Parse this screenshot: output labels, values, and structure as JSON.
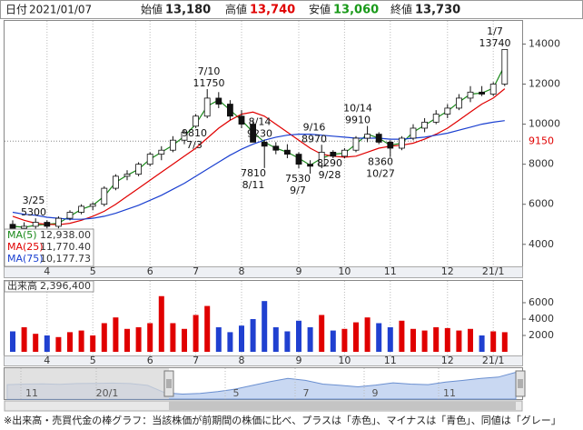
{
  "header": {
    "date_label": "日付",
    "date": "2021/01/07",
    "open_label": "始値",
    "open": "13,180",
    "high_label": "高値",
    "high": "13,740",
    "low_label": "安値",
    "low": "13,060",
    "close_label": "終値",
    "close": "13,730"
  },
  "chart_data": [
    {
      "type": "candlestick",
      "categories": [
        null,
        null,
        null,
        "4",
        null,
        null,
        null,
        "5",
        null,
        null,
        null,
        null,
        "6",
        null,
        null,
        null,
        "7",
        null,
        null,
        null,
        "8",
        null,
        null,
        null,
        null,
        "9",
        null,
        null,
        null,
        "10",
        null,
        null,
        null,
        "11",
        null,
        null,
        null,
        null,
        "12",
        null,
        null,
        null,
        "21/1",
        null
      ],
      "open": [
        5000,
        4800,
        4900,
        5100,
        4900,
        5300,
        5600,
        5900,
        6000,
        6800,
        7400,
        7500,
        8000,
        8500,
        8700,
        9200,
        9900,
        10400,
        11300,
        11000,
        10400,
        10000,
        9100,
        8900,
        8700,
        8500,
        8000,
        7900,
        8600,
        8400,
        8700,
        9300,
        9500,
        9100,
        8800,
        9300,
        9800,
        10100,
        10500,
        10800,
        11300,
        11600,
        11500,
        12000
      ],
      "high": [
        5200,
        5100,
        5300,
        5200,
        5400,
        5700,
        6000,
        6100,
        6900,
        7500,
        7700,
        8100,
        8600,
        8900,
        9400,
        9700,
        10500,
        11750,
        11600,
        11200,
        10700,
        10200,
        9230,
        9100,
        9000,
        8600,
        8200,
        8970,
        8700,
        8800,
        9400,
        9910,
        9600,
        9200,
        9400,
        10000,
        10300,
        10700,
        11000,
        11500,
        11900,
        11900,
        12100,
        13740
      ],
      "low": [
        4600,
        4500,
        4700,
        4800,
        4800,
        5200,
        5500,
        5700,
        5900,
        6700,
        7200,
        7400,
        7900,
        8200,
        8600,
        9000,
        9810,
        10300,
        10800,
        10200,
        9800,
        9200,
        7810,
        8500,
        8300,
        7800,
        7530,
        7800,
        8300,
        8290,
        8600,
        9100,
        9000,
        8360,
        8700,
        9200,
        9600,
        10000,
        10300,
        10700,
        11100,
        11400,
        11400,
        11900
      ],
      "close": [
        4800,
        4900,
        5100,
        4900,
        5300,
        5600,
        5900,
        6000,
        6800,
        7400,
        7500,
        8000,
        8500,
        8700,
        9200,
        9600,
        10400,
        11300,
        11000,
        10400,
        10000,
        9100,
        8900,
        8700,
        8500,
        8000,
        7900,
        8600,
        8400,
        8700,
        9300,
        9500,
        9100,
        8800,
        9300,
        9800,
        10100,
        10500,
        10800,
        11300,
        11600,
        11500,
        12000,
        13730
      ],
      "up_color": "#ffffff",
      "down_color": "#111111",
      "series": [
        {
          "name": "MA(5)",
          "color": "#1a8a1a",
          "legend_value": "12,938.00",
          "values": [
            4900,
            4850,
            4950,
            5000,
            5050,
            5400,
            5750,
            5950,
            6400,
            7100,
            7450,
            7750,
            8250,
            8600,
            8950,
            9400,
            10000,
            10900,
            11200,
            10700,
            10200,
            9600,
            9100,
            8800,
            8600,
            8300,
            7950,
            8300,
            8500,
            8550,
            9000,
            9500,
            9300,
            8950,
            9050,
            9600,
            9950,
            10300,
            10650,
            11100,
            11500,
            11550,
            11800,
            12938
          ]
        },
        {
          "name": "MA(25)",
          "color": "#e00000",
          "legend_value": "11,770.40",
          "values": [
            5400,
            5200,
            5050,
            5000,
            4980,
            5050,
            5200,
            5400,
            5650,
            6000,
            6400,
            6800,
            7200,
            7600,
            8000,
            8400,
            8800,
            9300,
            9800,
            10200,
            10500,
            10600,
            10400,
            10000,
            9600,
            9200,
            8800,
            8500,
            8400,
            8350,
            8400,
            8600,
            8800,
            8900,
            8950,
            9050,
            9250,
            9500,
            9800,
            10200,
            10600,
            11000,
            11300,
            11770.4
          ]
        },
        {
          "name": "MA(75)",
          "color": "#1a3fd0",
          "legend_value": "10,177.73",
          "values": [
            5600,
            5500,
            5450,
            5350,
            5300,
            5250,
            5250,
            5300,
            5400,
            5550,
            5750,
            5950,
            6200,
            6450,
            6750,
            7050,
            7400,
            7750,
            8100,
            8450,
            8750,
            9000,
            9200,
            9350,
            9450,
            9500,
            9500,
            9450,
            9400,
            9350,
            9300,
            9300,
            9300,
            9250,
            9250,
            9300,
            9350,
            9450,
            9550,
            9700,
            9850,
            10000,
            10100,
            10177.73
          ]
        }
      ],
      "ylim": [
        2900,
        15200
      ],
      "yticks": [
        4000,
        6000,
        8000,
        10000,
        12000,
        14000
      ],
      "reference_line": {
        "value": 9150,
        "color": "#e00000"
      },
      "annotations": [
        {
          "date": "3/25",
          "price": 5300
        },
        {
          "date": "7/3",
          "price": 9810
        },
        {
          "date": "7/10",
          "price": 11750
        },
        {
          "date": "8/11",
          "price": 7810
        },
        {
          "date": "8/14",
          "price": 9230
        },
        {
          "date": "9/7",
          "price": 7530
        },
        {
          "date": "9/16",
          "price": 8970
        },
        {
          "date": "9/28",
          "price": 8290
        },
        {
          "date": "10/14",
          "price": 9910
        },
        {
          "date": "10/27",
          "price": 8360
        },
        {
          "date": "1/7",
          "price": 13740
        }
      ]
    },
    {
      "type": "bar",
      "title": "出来高",
      "last_label": "2,396,400",
      "up_color": "#e00000",
      "down_color": "#2040d0",
      "flat_color": "#999999",
      "values": [
        2500,
        3000,
        2200,
        2000,
        1800,
        2400,
        2600,
        2000,
        3500,
        4200,
        2800,
        3000,
        3500,
        6800,
        3500,
        2800,
        4500,
        5600,
        3000,
        2400,
        3200,
        4000,
        6200,
        3000,
        2500,
        3800,
        3000,
        4500,
        2600,
        2800,
        3600,
        4200,
        3500,
        3000,
        3800,
        2800,
        2600,
        3000,
        2900,
        2600,
        2800,
        2000,
        2500,
        2396.4
      ],
      "ylim": [
        0,
        8550
      ],
      "yticks": [
        2000,
        4000,
        6000
      ]
    },
    {
      "type": "area",
      "color": "#6a8fd0",
      "values": [
        8800,
        9000,
        9100,
        8900,
        9200,
        9300,
        9400,
        9200,
        8500,
        5500,
        5000,
        5300,
        6000,
        7000,
        8500,
        10000,
        11300,
        10500,
        9000,
        8500,
        7900,
        8600,
        9500,
        9000,
        8800,
        9800,
        10500,
        11300,
        11800,
        13730
      ],
      "ylim": [
        3000,
        15000
      ],
      "x_labels": [
        "11",
        "20/1",
        "5",
        "7",
        "9",
        "11"
      ]
    }
  ],
  "footer": "※出来高・売買代金の棒グラフ：当該株価が前期間の株価に比べ、プラスは「赤色」、マイナスは「青色」、同値は「グレー」"
}
